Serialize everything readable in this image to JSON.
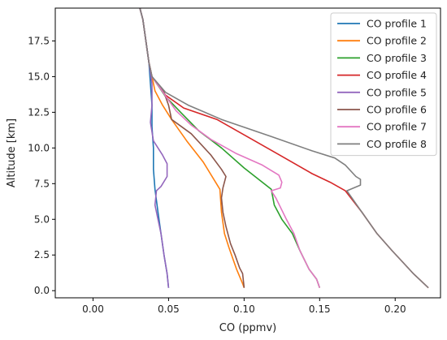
{
  "chart_data": {
    "type": "line",
    "title": "",
    "xlabel": "CO (ppmv)",
    "ylabel": "Altitude [km]",
    "xlim": [
      -0.025,
      0.23
    ],
    "ylim": [
      -0.5,
      19.8
    ],
    "xticks": [
      0.0,
      0.05,
      0.1,
      0.15,
      0.2
    ],
    "xtick_labels": [
      "0.00",
      "0.05",
      "0.10",
      "0.15",
      "0.20"
    ],
    "yticks": [
      0.0,
      2.5,
      5.0,
      7.5,
      10.0,
      12.5,
      15.0,
      17.5
    ],
    "ytick_labels": [
      "0.0",
      "2.5",
      "5.0",
      "7.5",
      "10.0",
      "12.5",
      "15.0",
      "17.5"
    ],
    "grid": false,
    "legend_position": "top-right",
    "series": [
      {
        "name": "CO profile 1",
        "color": "#1f77b4",
        "points": [
          [
            0.031,
            19.8
          ],
          [
            0.033,
            19.0
          ],
          [
            0.035,
            17.5
          ],
          [
            0.037,
            16.0
          ],
          [
            0.038,
            14.5
          ],
          [
            0.039,
            13.0
          ],
          [
            0.039,
            11.5
          ],
          [
            0.04,
            10.0
          ],
          [
            0.04,
            8.5
          ],
          [
            0.041,
            7.1
          ],
          [
            0.043,
            5.5
          ],
          [
            0.045,
            4.0
          ],
          [
            0.047,
            2.5
          ],
          [
            0.049,
            1.2
          ],
          [
            0.05,
            0.2
          ]
        ]
      },
      {
        "name": "CO profile 2",
        "color": "#ff7f0e",
        "points": [
          [
            0.031,
            19.8
          ],
          [
            0.033,
            19.0
          ],
          [
            0.035,
            17.5
          ],
          [
            0.037,
            16.0
          ],
          [
            0.039,
            15.0
          ],
          [
            0.041,
            14.0
          ],
          [
            0.046,
            13.0
          ],
          [
            0.052,
            12.0
          ],
          [
            0.062,
            10.5
          ],
          [
            0.073,
            9.0
          ],
          [
            0.084,
            7.1
          ],
          [
            0.085,
            5.5
          ],
          [
            0.087,
            4.0
          ],
          [
            0.09,
            3.0
          ],
          [
            0.095,
            1.5
          ],
          [
            0.099,
            0.5
          ],
          [
            0.1,
            0.2
          ]
        ]
      },
      {
        "name": "CO profile 3",
        "color": "#2ca02c",
        "points": [
          [
            0.031,
            19.8
          ],
          [
            0.033,
            19.0
          ],
          [
            0.035,
            17.5
          ],
          [
            0.037,
            16.0
          ],
          [
            0.039,
            15.0
          ],
          [
            0.048,
            13.6
          ],
          [
            0.058,
            12.5
          ],
          [
            0.07,
            11.2
          ],
          [
            0.085,
            10.0
          ],
          [
            0.1,
            8.6
          ],
          [
            0.118,
            7.1
          ],
          [
            0.12,
            6.0
          ],
          [
            0.125,
            5.0
          ],
          [
            0.132,
            4.0
          ],
          [
            0.137,
            2.8
          ],
          [
            0.143,
            1.5
          ],
          [
            0.148,
            0.8
          ],
          [
            0.15,
            0.2
          ]
        ]
      },
      {
        "name": "CO profile 4",
        "color": "#d62728",
        "points": [
          [
            0.031,
            19.8
          ],
          [
            0.033,
            19.0
          ],
          [
            0.035,
            17.5
          ],
          [
            0.037,
            16.0
          ],
          [
            0.039,
            15.0
          ],
          [
            0.048,
            13.7
          ],
          [
            0.06,
            12.8
          ],
          [
            0.082,
            12.0
          ],
          [
            0.102,
            10.8
          ],
          [
            0.122,
            9.6
          ],
          [
            0.145,
            8.2
          ],
          [
            0.157,
            7.6
          ],
          [
            0.167,
            7.0
          ],
          [
            0.178,
            5.5
          ],
          [
            0.188,
            4.0
          ],
          [
            0.198,
            2.8
          ],
          [
            0.205,
            2.0
          ],
          [
            0.212,
            1.2
          ],
          [
            0.218,
            0.6
          ],
          [
            0.222,
            0.2
          ]
        ]
      },
      {
        "name": "CO profile 5",
        "color": "#9467bd",
        "points": [
          [
            0.031,
            19.8
          ],
          [
            0.033,
            19.0
          ],
          [
            0.035,
            17.5
          ],
          [
            0.037,
            16.0
          ],
          [
            0.039,
            14.5
          ],
          [
            0.039,
            13.0
          ],
          [
            0.038,
            11.8
          ],
          [
            0.04,
            10.5
          ],
          [
            0.046,
            9.5
          ],
          [
            0.049,
            8.9
          ],
          [
            0.049,
            8.0
          ],
          [
            0.045,
            7.3
          ],
          [
            0.042,
            7.0
          ],
          [
            0.041,
            6.0
          ],
          [
            0.043,
            5.0
          ],
          [
            0.045,
            4.0
          ],
          [
            0.047,
            2.5
          ],
          [
            0.049,
            1.2
          ],
          [
            0.05,
            0.2
          ]
        ]
      },
      {
        "name": "CO profile 6",
        "color": "#8c564b",
        "points": [
          [
            0.031,
            19.8
          ],
          [
            0.033,
            19.0
          ],
          [
            0.035,
            17.5
          ],
          [
            0.037,
            16.0
          ],
          [
            0.039,
            15.0
          ],
          [
            0.047,
            13.9
          ],
          [
            0.05,
            13.0
          ],
          [
            0.052,
            12.0
          ],
          [
            0.065,
            11.0
          ],
          [
            0.078,
            9.5
          ],
          [
            0.085,
            8.5
          ],
          [
            0.088,
            8.0
          ],
          [
            0.086,
            7.2
          ],
          [
            0.085,
            6.5
          ],
          [
            0.086,
            5.5
          ],
          [
            0.088,
            4.5
          ],
          [
            0.091,
            3.3
          ],
          [
            0.094,
            2.5
          ],
          [
            0.097,
            1.6
          ],
          [
            0.099,
            1.2
          ],
          [
            0.1,
            0.2
          ]
        ]
      },
      {
        "name": "CO profile 7",
        "color": "#e377c2",
        "points": [
          [
            0.031,
            19.8
          ],
          [
            0.033,
            19.0
          ],
          [
            0.035,
            17.5
          ],
          [
            0.037,
            16.0
          ],
          [
            0.039,
            15.0
          ],
          [
            0.047,
            13.8
          ],
          [
            0.055,
            12.6
          ],
          [
            0.065,
            11.6
          ],
          [
            0.078,
            10.6
          ],
          [
            0.095,
            9.6
          ],
          [
            0.112,
            8.8
          ],
          [
            0.123,
            8.1
          ],
          [
            0.125,
            7.6
          ],
          [
            0.124,
            7.2
          ],
          [
            0.118,
            7.0
          ],
          [
            0.121,
            6.5
          ],
          [
            0.128,
            5.0
          ],
          [
            0.133,
            4.0
          ],
          [
            0.137,
            2.8
          ],
          [
            0.143,
            1.5
          ],
          [
            0.148,
            0.8
          ],
          [
            0.15,
            0.2
          ]
        ]
      },
      {
        "name": "CO profile 8",
        "color": "#7f7f7f",
        "points": [
          [
            0.031,
            19.8
          ],
          [
            0.033,
            19.0
          ],
          [
            0.035,
            17.5
          ],
          [
            0.037,
            16.0
          ],
          [
            0.039,
            15.0
          ],
          [
            0.048,
            13.9
          ],
          [
            0.063,
            13.0
          ],
          [
            0.085,
            12.0
          ],
          [
            0.118,
            10.8
          ],
          [
            0.145,
            9.8
          ],
          [
            0.16,
            9.3
          ],
          [
            0.167,
            8.8
          ],
          [
            0.174,
            8.0
          ],
          [
            0.177,
            7.8
          ],
          [
            0.177,
            7.4
          ],
          [
            0.168,
            7.0
          ],
          [
            0.178,
            5.5
          ],
          [
            0.188,
            4.0
          ],
          [
            0.198,
            2.8
          ],
          [
            0.205,
            2.0
          ],
          [
            0.212,
            1.2
          ],
          [
            0.218,
            0.6
          ],
          [
            0.222,
            0.2
          ]
        ]
      }
    ]
  }
}
